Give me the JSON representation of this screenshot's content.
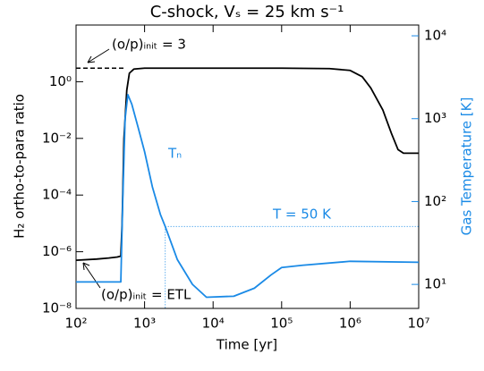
{
  "chart_data": {
    "type": "line",
    "title": "C-shock, Vₛ = 25 km s⁻¹",
    "x_label": "Time [yr]",
    "y_label": "H₂ ortho-to-para ratio",
    "y2_label": "Gas Temperature [K]",
    "x_log": true,
    "y_log": true,
    "y2_log": true,
    "xlim": [
      100,
      10000000
    ],
    "xticks": [
      {
        "value": 100,
        "label": "10²"
      },
      {
        "value": 1000,
        "label": "10³"
      },
      {
        "value": 10000,
        "label": "10⁴"
      },
      {
        "value": 100000,
        "label": "10⁵"
      },
      {
        "value": 1000000,
        "label": "10⁶"
      },
      {
        "value": 10000000,
        "label": "10⁷"
      }
    ],
    "ylim": [
      1e-08,
      100
    ],
    "yticks": [
      {
        "value": 1e-08,
        "label": "10⁻⁸"
      },
      {
        "value": 1e-06,
        "label": "10⁻⁶"
      },
      {
        "value": 0.0001,
        "label": "10⁻⁴"
      },
      {
        "value": 0.01,
        "label": "10⁻²"
      },
      {
        "value": 1,
        "label": "10⁰"
      }
    ],
    "y2lim": [
      5.13,
      13490
    ],
    "y2ticks": [
      {
        "value": 10,
        "label": "10¹"
      },
      {
        "value": 100,
        "label": "10²"
      },
      {
        "value": 1000,
        "label": "10³"
      },
      {
        "value": 10000,
        "label": "10⁴"
      }
    ],
    "series": [
      {
        "name": "H₂ ortho-to-para ratio",
        "color": "#000000",
        "x": [
          100,
          200,
          300,
          400,
          450,
          470,
          500,
          550,
          600,
          700,
          1000,
          10000,
          100000,
          500000,
          1000000,
          1500000,
          2000000,
          3000000,
          4000000,
          5000000,
          6000000,
          10000000
        ],
        "values": [
          5e-07,
          5.5e-07,
          6e-07,
          6.5e-07,
          7e-07,
          1e-05,
          0.01,
          0.5,
          2,
          2.8,
          3,
          3,
          3,
          2.9,
          2.5,
          1.5,
          0.6,
          0.1,
          0.015,
          0.004,
          0.003,
          0.003
        ]
      },
      {
        "name": "Tₙ",
        "color": "#1a8ae6",
        "axis": "y2",
        "x": [
          100,
          450,
          480,
          520,
          570,
          650,
          800,
          1000,
          1300,
          1700,
          2000,
          3000,
          5000,
          8000,
          20000,
          40000,
          70000,
          100000,
          200000,
          1000000,
          10000000
        ],
        "values": [
          10.7,
          10.7,
          100,
          1000,
          1950,
          1500,
          800,
          400,
          150,
          70,
          50,
          20,
          10,
          7,
          7.2,
          9,
          13,
          16,
          17,
          19,
          18.5
        ]
      }
    ],
    "reference_lines": [
      {
        "label": "(o/p)ᵢₙᵢₜ = 3",
        "value": 3,
        "x": [
          100,
          500
        ]
      },
      {
        "label": "T = 50 K",
        "value": 50,
        "axis": "y2",
        "x": [
          2000,
          10000000
        ]
      }
    ],
    "annotations": [
      {
        "text": "(o/p)ᵢₙᵢₜ = ETL"
      }
    ]
  }
}
